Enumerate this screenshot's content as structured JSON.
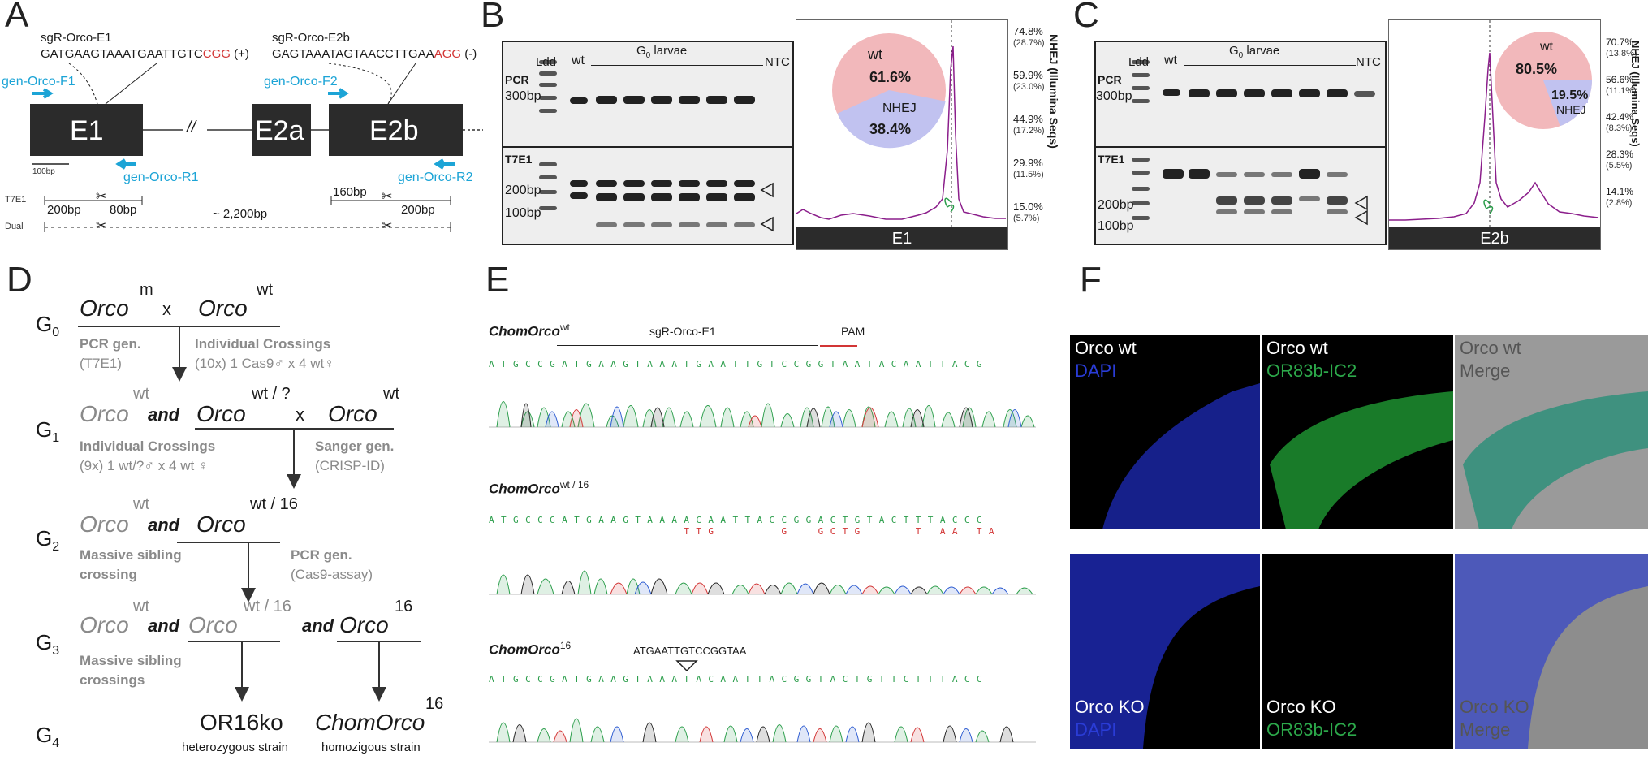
{
  "panelA": {
    "label": "A",
    "sg1_name": "sgR-Orco-E1",
    "sg1_seq": "GATGAAGTAAATGAATTGTC",
    "sg1_pam": "CGG",
    "sg1_strand": "(+)",
    "sg2_name": "sgR-Orco-E2b",
    "sg2_seq": "GAGTAAATAGTAACCTTGAA",
    "sg2_pam": "AGG",
    "sg2_strand": "(-)",
    "primer_f1": "gen-Orco-F1",
    "primer_r1": "gen-Orco-R1",
    "primer_f2": "gen-Orco-F2",
    "primer_r2": "gen-Orco-R2",
    "exon1": "E1",
    "exon2a": "E2a",
    "exon2b": "E2b",
    "break_mark": "//",
    "scale": "100bp",
    "t7e1": "T7E1",
    "dual": "Dual",
    "frag_200_1": "200bp",
    "frag_80": "80bp",
    "frag_160": "160bp",
    "frag_200_2": "200bp",
    "dual_span": "~ 2,200bp",
    "colors": {
      "exon": "#2b2b2b",
      "primer": "#1ca4d6",
      "pam": "#d23535"
    }
  },
  "panelB": {
    "label": "B",
    "ldd": "Ldd",
    "wt": "wt",
    "larvae": "G",
    "larvae_sub": "0",
    "larvae_rest": " larvae",
    "ntc": "NTC",
    "pcr": "PCR",
    "pcr_size": "300bp",
    "t7e1": "T7E1",
    "s200": "200bp",
    "s100": "100bp",
    "amplicon": "E1",
    "pie_wt_label": "wt",
    "pie_wt_value": "61.6%",
    "pie_nhej_label": "NHEJ",
    "pie_nhej_value": "38.4%",
    "axis_title": "NHEJ (Illumina Seqs)",
    "ticks": [
      {
        "v": "74.8%",
        "c": "(28.7%)"
      },
      {
        "v": "59.9%",
        "c": "(23.0%)"
      },
      {
        "v": "44.9%",
        "c": "(17.2%)"
      },
      {
        "v": "29.9%",
        "c": "(11.5%)"
      },
      {
        "v": "15.0%",
        "c": "(5.7%)"
      }
    ]
  },
  "panelC": {
    "label": "C",
    "ldd": "Ldd",
    "wt": "wt",
    "larvae": "G",
    "larvae_sub": "0",
    "larvae_rest": " larvae",
    "ntc": "NTC",
    "pcr": "PCR",
    "pcr_size": "300bp",
    "t7e1": "T7E1",
    "s200": "200bp",
    "s100": "100bp",
    "amplicon": "E2b",
    "pie_wt_label": "wt",
    "pie_wt_value": "80.5%",
    "pie_nhej_label": "NHEJ",
    "pie_nhej_value": "19.5%",
    "axis_title": "NHEJ (Illumina Seqs)",
    "ticks": [
      {
        "v": "70.7%",
        "c": "(13.8%)"
      },
      {
        "v": "56.6%",
        "c": "(11.1%)"
      },
      {
        "v": "42.4%",
        "c": "(8.3%)"
      },
      {
        "v": "28.3%",
        "c": "(5.5%)"
      },
      {
        "v": "14.1%",
        "c": "(2.8%)"
      }
    ]
  },
  "panelD": {
    "label": "D",
    "g0": "G",
    "g0s": "0",
    "g1": "G",
    "g1s": "1",
    "g2": "G",
    "g2s": "2",
    "g3": "G",
    "g3s": "3",
    "g4": "G",
    "g4s": "4",
    "orco": "Orco",
    "sup_m": "m",
    "sup_wt": "wt",
    "sup_wtq": "wt / ?",
    "sup_wt16": "wt / 16",
    "sup_16": "16",
    "x": "x",
    "and": "and",
    "pcr_gen": "PCR gen.",
    "t7e1_paren": "(T7E1)",
    "ind_cross1": "Individual Crossings",
    "ind_cross1_detail": "(10x) 1 Cas9♂ x 4 wt♀",
    "ind_cross2": "Individual Crossings",
    "ind_cross2_detail": "(9x) 1 wt/?♂ x 4 wt ♀",
    "sanger": "Sanger gen.",
    "crispid": "(CRISP-ID)",
    "massive1a": "Massive sibling",
    "massive1b": "crossing",
    "pcr_gen2": "PCR gen.",
    "cas9assay": "(Cas9-assay)",
    "massive2a": "Massive sibling",
    "massive2b": "crossings",
    "or16ko": "OR16ko",
    "het": "heterozygous strain",
    "chomorco": "ChomOrco",
    "hom": "homozigous strain"
  },
  "panelE": {
    "label": "E",
    "name": "ChomOrco",
    "sup1": "wt",
    "sup2": "wt / 16",
    "sup3": "16",
    "sgr": "sgR-Orco-E1",
    "pam": "PAM",
    "seq1": "ATGCCGATGAAGTAAATGAATTGTCCGGTAATACAATTACG",
    "seq2a": "ATGCCGATGAAGTAAAACAATTACCGGACTGTACTTTACCC",
    "seq2b": "                TTG     G  GCTG    T AA TA  ",
    "seq3": "ATGCCGATGAAGTAAATACAATTACGGTACTGTTCTTTACC",
    "insert": "ATGAATTGTCCGGTAA"
  },
  "panelF": {
    "label": "F",
    "r1c1a": "Orco wt",
    "r1c1b": "DAPI",
    "r1c2a": "Orco wt",
    "r1c2b": "OR83b-IC2",
    "r1c3a": "Orco wt",
    "r1c3b": "Merge",
    "r2c1a": "Orco KO",
    "r2c1b": "DAPI",
    "r2c2a": "Orco KO",
    "r2c2b": "OR83b-IC2",
    "r2c3a": "Orco KO",
    "r2c3b": "Merge"
  }
}
